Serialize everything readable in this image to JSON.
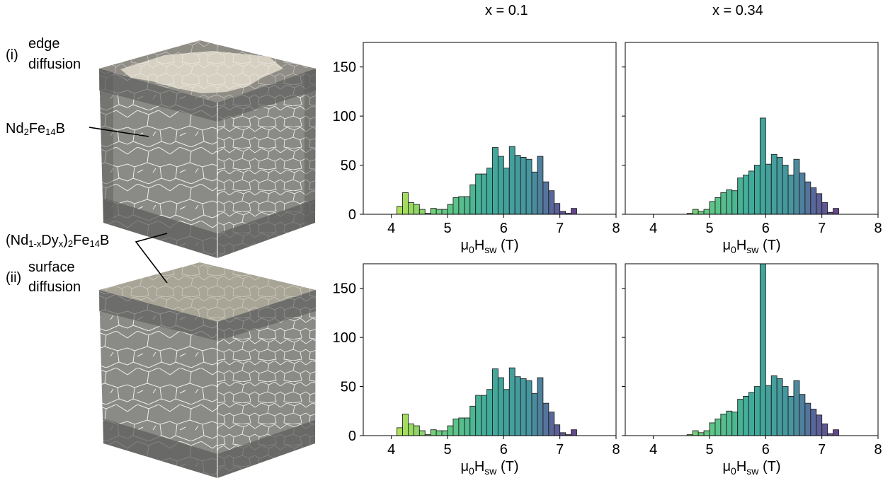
{
  "column_titles": [
    "x = 0.1",
    "x = 0.34"
  ],
  "labels": {
    "case_i_marker": "(i)",
    "case_i_line1": "edge",
    "case_i_line2": "diffusion",
    "case_ii_marker": "(ii)",
    "case_ii_line1": "surface",
    "case_ii_line2": "diffusion",
    "main_phase_a": "Nd",
    "main_phase_b": "2",
    "main_phase_c": "Fe",
    "main_phase_d": "14",
    "main_phase_e": "B",
    "shell_phase_a": "(Nd",
    "shell_phase_b": "1-x",
    "shell_phase_c": "Dy",
    "shell_phase_d": "x",
    "shell_phase_e": ")",
    "shell_phase_f": "2",
    "shell_phase_g": "Fe",
    "shell_phase_h": "14",
    "shell_phase_i": "B"
  },
  "colors": {
    "cube_face": "#8a8a86",
    "cube_top_edge": "#939189",
    "cube_top_surface": "#a9a596",
    "shell_light": "#d6d0c2",
    "grain_boundary": "#ffffff",
    "shell_dark": "#5e5e5c",
    "bar_edge": "#222222"
  },
  "chart_data": [
    {
      "id": "i-x0.1",
      "type": "bar",
      "xlabel": "μ0Hsw (T)",
      "xlabel_parts": {
        "mu": "μ",
        "mu_sub": "0",
        "h": "H",
        "h_sub": "sw",
        "unit": " (T)"
      },
      "xlim": [
        3.5,
        8
      ],
      "ylim": [
        0,
        175
      ],
      "xticks": [
        4,
        5,
        6,
        7,
        8
      ],
      "yticks": [
        0,
        50,
        100,
        150
      ],
      "bin_width": 0.1,
      "bins_start": [
        4.1,
        4.2,
        4.3,
        4.4,
        4.5,
        4.6,
        4.7,
        4.8,
        4.9,
        5.0,
        5.1,
        5.2,
        5.3,
        5.4,
        5.5,
        5.6,
        5.7,
        5.8,
        5.9,
        6.0,
        6.1,
        6.2,
        6.3,
        6.4,
        6.5,
        6.6,
        6.7,
        6.8,
        6.9,
        7.0,
        7.1,
        7.2
      ],
      "values": [
        8,
        22,
        12,
        10,
        5,
        1,
        6,
        5,
        5,
        10,
        17,
        18,
        18,
        30,
        41,
        41,
        47,
        68,
        59,
        47,
        69,
        60,
        58,
        56,
        43,
        59,
        33,
        24,
        11,
        3,
        1,
        6
      ]
    },
    {
      "id": "i-x0.34",
      "type": "bar",
      "xlabel": "μ0Hsw (T)",
      "xlabel_parts": {
        "mu": "μ",
        "mu_sub": "0",
        "h": "H",
        "h_sub": "sw",
        "unit": " (T)"
      },
      "xlim": [
        3.5,
        8
      ],
      "ylim": [
        0,
        175
      ],
      "xticks": [
        4,
        5,
        6,
        7,
        8
      ],
      "yticks": [],
      "bin_width": 0.1,
      "bins_start": [
        4.6,
        4.7,
        4.8,
        4.9,
        5.0,
        5.1,
        5.2,
        5.3,
        5.4,
        5.5,
        5.6,
        5.7,
        5.8,
        5.9,
        6.0,
        6.1,
        6.2,
        6.3,
        6.4,
        6.5,
        6.6,
        6.7,
        6.8,
        6.9,
        7.0,
        7.1,
        7.2
      ],
      "values": [
        1,
        5,
        3,
        5,
        13,
        17,
        22,
        25,
        24,
        37,
        40,
        44,
        50,
        98,
        51,
        61,
        58,
        50,
        40,
        56,
        42,
        33,
        27,
        21,
        12,
        2,
        6
      ]
    },
    {
      "id": "ii-x0.1",
      "type": "bar",
      "xlabel": "μ0Hsw (T)",
      "xlabel_parts": {
        "mu": "μ",
        "mu_sub": "0",
        "h": "H",
        "h_sub": "sw",
        "unit": " (T)"
      },
      "xlim": [
        3.5,
        8
      ],
      "ylim": [
        0,
        175
      ],
      "xticks": [
        4,
        5,
        6,
        7,
        8
      ],
      "yticks": [
        0,
        50,
        100,
        150
      ],
      "bin_width": 0.1,
      "bins_start": [
        4.1,
        4.2,
        4.3,
        4.4,
        4.5,
        4.6,
        4.7,
        4.8,
        4.9,
        5.0,
        5.1,
        5.2,
        5.3,
        5.4,
        5.5,
        5.6,
        5.7,
        5.8,
        5.9,
        6.0,
        6.1,
        6.2,
        6.3,
        6.4,
        6.5,
        6.6,
        6.7,
        6.8,
        6.9,
        7.0,
        7.1,
        7.2
      ],
      "values": [
        8,
        22,
        12,
        10,
        5,
        1,
        6,
        5,
        5,
        10,
        17,
        18,
        18,
        30,
        41,
        41,
        47,
        68,
        59,
        47,
        69,
        60,
        58,
        56,
        43,
        59,
        33,
        24,
        11,
        3,
        1,
        6
      ]
    },
    {
      "id": "ii-x0.34",
      "type": "bar",
      "xlabel": "μ0Hsw (T)",
      "xlabel_parts": {
        "mu": "μ",
        "mu_sub": "0",
        "h": "H",
        "h_sub": "sw",
        "unit": " (T)"
      },
      "xlim": [
        3.5,
        8
      ],
      "ylim": [
        0,
        175
      ],
      "xticks": [
        4,
        5,
        6,
        7,
        8
      ],
      "yticks": [],
      "bin_width": 0.1,
      "bins_start": [
        4.6,
        4.7,
        4.8,
        4.9,
        5.0,
        5.1,
        5.2,
        5.3,
        5.4,
        5.5,
        5.6,
        5.7,
        5.8,
        5.9,
        6.0,
        6.1,
        6.2,
        6.3,
        6.4,
        6.5,
        6.6,
        6.7,
        6.8,
        6.9,
        7.0,
        7.1,
        7.2
      ],
      "values": [
        1,
        5,
        3,
        5,
        13,
        17,
        22,
        25,
        24,
        37,
        40,
        44,
        50,
        175,
        51,
        61,
        58,
        50,
        40,
        56,
        42,
        33,
        27,
        21,
        12,
        2,
        6
      ]
    }
  ]
}
